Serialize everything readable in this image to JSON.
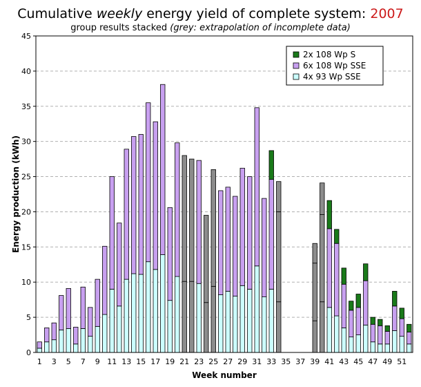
{
  "title": {
    "main_a": "Cumulative ",
    "main_em": "weekly",
    "main_b": " energy yield of complete system: ",
    "year": "2007",
    "subtitle": "group results stacked ",
    "subtitle_em": "(grey: extrapolation of incomplete data)"
  },
  "colors": {
    "s_green": "#1a7a1a",
    "sse_purple": "#c8a0f0",
    "sse93_cyan": "#ccffff",
    "grey": "#8c8c8c",
    "year_red": "#cc1a1a"
  },
  "chart_data": {
    "type": "bar",
    "stacked": true,
    "xlabel": "Week number",
    "ylabel": "Energy production (kWh)",
    "ylim": [
      0,
      45
    ],
    "yticks": [
      0,
      5,
      10,
      15,
      20,
      25,
      30,
      35,
      40,
      45
    ],
    "xticks": [
      1,
      3,
      5,
      7,
      9,
      11,
      13,
      15,
      17,
      19,
      21,
      23,
      25,
      27,
      29,
      31,
      33,
      35,
      37,
      39,
      41,
      43,
      45,
      47,
      49,
      51
    ],
    "weeks": [
      1,
      2,
      3,
      4,
      5,
      6,
      7,
      8,
      9,
      10,
      11,
      12,
      13,
      14,
      15,
      16,
      17,
      18,
      19,
      20,
      21,
      22,
      23,
      24,
      25,
      26,
      27,
      28,
      29,
      30,
      31,
      32,
      33,
      34,
      35,
      36,
      37,
      38,
      39,
      40,
      41,
      42,
      43,
      44,
      45,
      46,
      47,
      48,
      49,
      50,
      51,
      52
    ],
    "grid": true,
    "legend_position": "top-right",
    "series": [
      {
        "name": "4x 93 Wp SSE",
        "color": "#ccffff",
        "values": [
          0.6,
          1.5,
          1.8,
          3.2,
          3.4,
          1.2,
          3.4,
          2.3,
          3.7,
          5.4,
          9.0,
          6.6,
          10.4,
          11.2,
          11.1,
          12.9,
          11.8,
          13.9,
          7.4,
          10.8,
          10.1,
          10.1,
          9.8,
          7.1,
          9.4,
          8.2,
          8.7,
          8.0,
          9.5,
          9.0,
          12.3,
          7.9,
          9.0,
          7.2,
          0,
          0,
          0,
          0,
          4.5,
          7.2,
          6.4,
          5.2,
          3.5,
          2.2,
          2.5,
          3.9,
          1.5,
          1.2,
          1.2,
          3.1,
          2.3,
          1.2
        ]
      },
      {
        "name": "6x 108 Wp SSE",
        "color": "#c8a0f0",
        "values": [
          0.9,
          2.0,
          2.4,
          4.9,
          5.7,
          2.4,
          5.9,
          4.1,
          6.7,
          9.7,
          16.0,
          11.8,
          18.5,
          19.5,
          19.9,
          22.6,
          21.0,
          24.2,
          13.2,
          19.0,
          0,
          0,
          17.5,
          0,
          0,
          14.8,
          14.8,
          14.2,
          16.7,
          16.0,
          22.5,
          14.0,
          15.6,
          0,
          0,
          0,
          0,
          0,
          0,
          0,
          11.2,
          10.3,
          6.2,
          3.8,
          3.9,
          6.3,
          2.5,
          2.6,
          1.8,
          3.5,
          2.5,
          1.7
        ]
      },
      {
        "name": "2x 108 Wp S",
        "color": "#1a7a1a",
        "values": [
          0,
          0,
          0,
          0,
          0,
          0,
          0,
          0,
          0,
          0,
          0,
          0,
          0,
          0,
          0,
          0,
          0,
          0,
          0,
          0,
          0,
          0,
          0,
          0,
          0,
          0,
          0,
          0,
          0,
          0,
          0,
          0,
          4.1,
          0,
          0,
          0,
          0,
          0,
          0,
          0,
          4.0,
          2.0,
          2.3,
          1.3,
          1.9,
          2.4,
          1.0,
          0.9,
          0.8,
          2.1,
          1.5,
          1.1
        ]
      }
    ],
    "grey_extrapolated": {
      "color": "#8c8c8c",
      "weeks": [
        21,
        22,
        24,
        25,
        34,
        39,
        40
      ],
      "lower_values": [
        10.1,
        10.1,
        7.1,
        9.4,
        7.2,
        4.5,
        7.2
      ],
      "mid_values": [
        17.9,
        17.4,
        12.4,
        16.6,
        12.8,
        8.2,
        12.4
      ],
      "upper_values": [
        0,
        0,
        0,
        0,
        4.3,
        2.8,
        4.5
      ]
    }
  },
  "legend": {
    "items": [
      {
        "label": "2x 108 Wp S",
        "color": "#1a7a1a"
      },
      {
        "label": "6x 108 Wp SSE",
        "color": "#c8a0f0"
      },
      {
        "label": "4x 93 Wp SSE",
        "color": "#ccffff"
      }
    ]
  }
}
